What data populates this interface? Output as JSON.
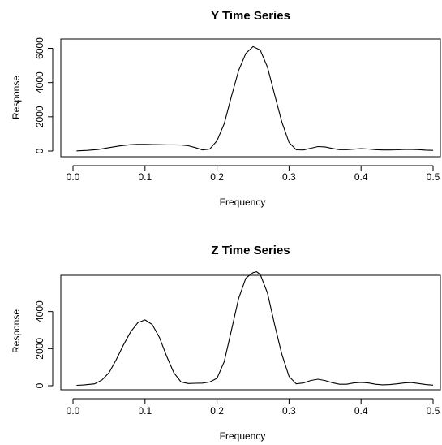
{
  "chart_data": [
    {
      "type": "line",
      "title": "Y Time Series",
      "xlabel": "Frequency",
      "ylabel": "Response",
      "xlim": [
        0,
        0.5
      ],
      "ylim": [
        0,
        6000
      ],
      "xticks": [
        0.0,
        0.1,
        0.2,
        0.3,
        0.4,
        0.5
      ],
      "xtick_labels": [
        "0.0",
        "0.1",
        "0.2",
        "0.3",
        "0.4",
        "0.5"
      ],
      "yticks": [
        0,
        2000,
        4000,
        6000
      ],
      "ytick_labels": [
        "0",
        "2000",
        "4000",
        "6000"
      ],
      "grid": false,
      "series": [
        {
          "x": [
            0.005,
            0.02,
            0.035,
            0.05,
            0.065,
            0.08,
            0.09,
            0.1,
            0.11,
            0.12,
            0.13,
            0.14,
            0.15,
            0.16,
            0.17,
            0.18,
            0.19,
            0.2,
            0.21,
            0.22,
            0.23,
            0.24,
            0.25,
            0.26,
            0.27,
            0.28,
            0.29,
            0.3,
            0.31,
            0.32,
            0.33,
            0.34,
            0.35,
            0.36,
            0.37,
            0.38,
            0.39,
            0.4,
            0.41,
            0.42,
            0.43,
            0.44,
            0.45,
            0.46,
            0.47,
            0.48,
            0.49,
            0.5
          ],
          "values": [
            10,
            40,
            90,
            200,
            300,
            370,
            390,
            390,
            380,
            370,
            360,
            360,
            350,
            310,
            200,
            60,
            120,
            600,
            1600,
            3200,
            4700,
            5700,
            6100,
            5900,
            4900,
            3300,
            1700,
            500,
            70,
            60,
            160,
            260,
            240,
            150,
            80,
            80,
            110,
            140,
            120,
            80,
            60,
            60,
            70,
            90,
            90,
            80,
            50,
            40
          ]
        }
      ]
    },
    {
      "type": "line",
      "title": "Z Time Series",
      "xlabel": "Frequency",
      "ylabel": "Response",
      "xlim": [
        0,
        0.5
      ],
      "ylim": [
        0,
        6000
      ],
      "xticks": [
        0.0,
        0.1,
        0.2,
        0.3,
        0.4,
        0.5
      ],
      "xtick_labels": [
        "0.0",
        "0.1",
        "0.2",
        "0.3",
        "0.4",
        "0.5"
      ],
      "yticks": [
        0,
        2000,
        4000
      ],
      "ytick_labels": [
        "0",
        "2000",
        "4000"
      ],
      "grid": false,
      "series": [
        {
          "x": [
            0.005,
            0.015,
            0.03,
            0.04,
            0.05,
            0.06,
            0.07,
            0.08,
            0.09,
            0.1,
            0.11,
            0.12,
            0.13,
            0.14,
            0.15,
            0.16,
            0.17,
            0.18,
            0.19,
            0.2,
            0.21,
            0.22,
            0.23,
            0.24,
            0.25,
            0.255,
            0.26,
            0.27,
            0.28,
            0.29,
            0.3,
            0.31,
            0.32,
            0.33,
            0.34,
            0.35,
            0.36,
            0.37,
            0.38,
            0.39,
            0.4,
            0.41,
            0.42,
            0.43,
            0.44,
            0.45,
            0.46,
            0.47,
            0.48,
            0.49,
            0.5
          ],
          "values": [
            20,
            40,
            100,
            300,
            700,
            1400,
            2200,
            2900,
            3400,
            3550,
            3300,
            2600,
            1600,
            700,
            200,
            120,
            130,
            140,
            200,
            400,
            1300,
            3000,
            4700,
            5800,
            6100,
            6150,
            6000,
            5000,
            3300,
            1700,
            500,
            100,
            150,
            280,
            350,
            280,
            160,
            80,
            80,
            150,
            180,
            150,
            80,
            50,
            60,
            100,
            150,
            170,
            120,
            60,
            30
          ]
        }
      ]
    }
  ]
}
